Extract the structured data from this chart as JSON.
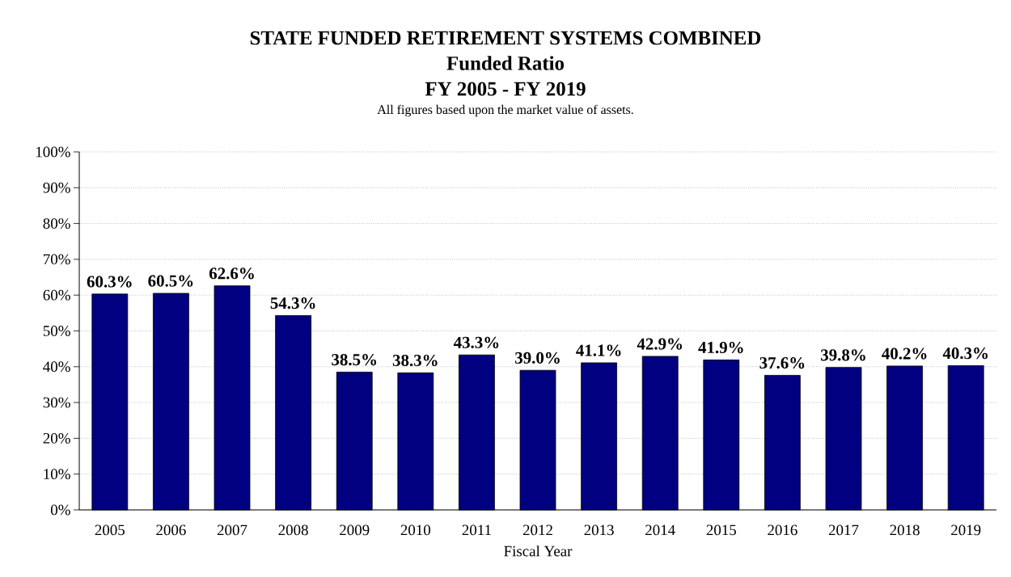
{
  "chart_data": {
    "type": "bar",
    "title": "STATE FUNDED RETIREMENT SYSTEMS COMBINED",
    "subtitle": "Funded Ratio",
    "annotations": [
      "FY 2005 - FY 2019",
      "All figures based upon the market value of assets."
    ],
    "xlabel": "Fiscal Year",
    "categories": [
      "2005",
      "2006",
      "2007",
      "2008",
      "2009",
      "2010",
      "2011",
      "2012",
      "2013",
      "2014",
      "2015",
      "2016",
      "2017",
      "2018",
      "2019"
    ],
    "values": [
      60.3,
      60.5,
      62.6,
      54.3,
      38.5,
      38.3,
      43.3,
      39.0,
      41.1,
      42.9,
      41.9,
      37.6,
      39.8,
      40.2,
      40.3
    ],
    "value_labels": [
      "60.3%",
      "60.5%",
      "62.6%",
      "54.3%",
      "38.5%",
      "38.3%",
      "43.3%",
      "39.0%",
      "41.1%",
      "42.9%",
      "41.9%",
      "37.6%",
      "39.8%",
      "40.2%",
      "40.3%"
    ],
    "color": "#000080",
    "ylim": [
      0,
      100
    ],
    "yticks": [
      {
        "value": 0,
        "label": "0%"
      },
      {
        "value": 10,
        "label": "10%"
      },
      {
        "value": 20,
        "label": "20%"
      },
      {
        "value": 30,
        "label": "30%"
      },
      {
        "value": 40,
        "label": "40%"
      },
      {
        "value": 50,
        "label": "50%"
      },
      {
        "value": 60,
        "label": "60%"
      },
      {
        "value": 70,
        "label": "70%"
      },
      {
        "value": 80,
        "label": "80%"
      },
      {
        "value": 90,
        "label": "90%"
      },
      {
        "value": 100,
        "label": "100%"
      }
    ],
    "grid": "y"
  }
}
